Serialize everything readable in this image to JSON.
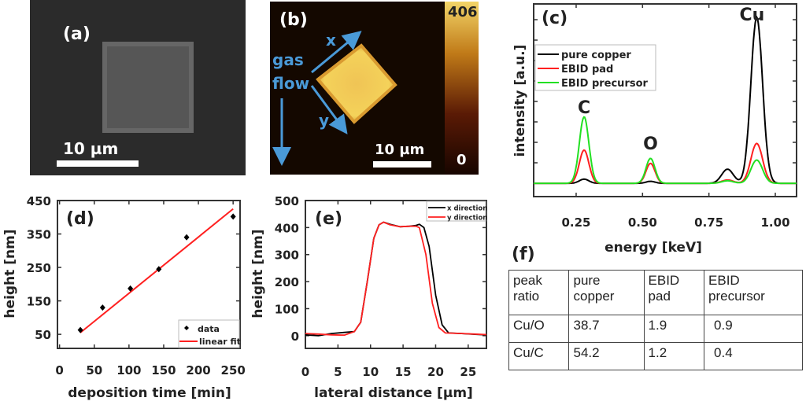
{
  "panels": {
    "a": {
      "label": "(a)",
      "scale_bar": "10 µm",
      "colors": {
        "background": "#2b2b2b",
        "structure": "#5a5a5a"
      }
    },
    "b": {
      "label": "(b)",
      "scale_bar": "10 µm",
      "gas_flow_label_1": "gas",
      "gas_flow_label_2": "flow",
      "axis_x": "x",
      "axis_y": "y",
      "colorbar_max": "406",
      "colorbar_min": "0",
      "colors": {
        "arrows": "#4a9ad8",
        "background": "#140800",
        "structure": "#e9b845"
      }
    },
    "c": {
      "label": "(c)"
    },
    "d": {
      "label": "(d)"
    },
    "e": {
      "label": "(e)"
    },
    "f": {
      "label": "(f)"
    }
  },
  "chart_data": [
    {
      "id": "c",
      "type": "line",
      "xlabel": "energy [keV]",
      "ylabel": "intensity [a.u.]",
      "xlim": [
        0.09,
        1.08
      ],
      "ylim": [
        -8,
        108
      ],
      "xticks": [
        "0.25",
        "0.50",
        "0.75",
        "1.00"
      ],
      "xtick_values": [
        0.25,
        0.5,
        0.75,
        1.0
      ],
      "y_tick_labels_shown": false,
      "legend": "top-left",
      "peak_labels": [
        {
          "text": "C",
          "energy": 0.28
        },
        {
          "text": "O",
          "energy": 0.53
        },
        {
          "text": "Cu",
          "energy": 0.93
        }
      ],
      "series": [
        {
          "name": "pure copper",
          "color": "#000000",
          "peaks": [
            {
              "energy": 0.28,
              "intensity": 2.5
            },
            {
              "energy": 0.53,
              "intensity": 1.2
            },
            {
              "energy": 0.82,
              "intensity": 8.5
            },
            {
              "energy": 0.93,
              "intensity": 100
            }
          ]
        },
        {
          "name": "EBID pad",
          "color": "#ff2020",
          "peaks": [
            {
              "energy": 0.28,
              "intensity": 20
            },
            {
              "energy": 0.53,
              "intensity": 12
            },
            {
              "energy": 0.82,
              "intensity": 2
            },
            {
              "energy": 0.93,
              "intensity": 24
            }
          ]
        },
        {
          "name": "EBID precursor",
          "color": "#22e022",
          "peaks": [
            {
              "energy": 0.28,
              "intensity": 40
            },
            {
              "energy": 0.53,
              "intensity": 15
            },
            {
              "energy": 0.82,
              "intensity": 1.5
            },
            {
              "energy": 0.93,
              "intensity": 14
            }
          ]
        }
      ]
    },
    {
      "id": "d",
      "type": "scatter",
      "xlabel": "deposition time [min]",
      "ylabel": "height [nm]",
      "xlim": [
        -3,
        260
      ],
      "ylim": [
        8,
        450
      ],
      "xticks": [
        0,
        50,
        100,
        150,
        200,
        250
      ],
      "yticks": [
        50,
        150,
        250,
        350,
        450
      ],
      "legend": "bottom-right",
      "series": [
        {
          "name": "data",
          "color": "#000000",
          "x": [
            30,
            62,
            102,
            143,
            183,
            250
          ],
          "y": [
            63,
            130,
            187,
            245,
            340,
            402
          ]
        },
        {
          "name": "linear fit",
          "color": "#ff2020",
          "x": [
            30,
            250
          ],
          "y": [
            55,
            425
          ]
        }
      ]
    },
    {
      "id": "e",
      "type": "line",
      "xlabel": "lateral distance [µm]",
      "ylabel": "height [nm]",
      "xlim": [
        0,
        27.8
      ],
      "ylim": [
        -47,
        500
      ],
      "xticks": [
        0,
        5,
        10,
        15,
        20,
        25
      ],
      "yticks": [
        0,
        100,
        200,
        300,
        400,
        500
      ],
      "legend": "top-right",
      "series": [
        {
          "name": "x direction",
          "color": "#000000",
          "x": [
            0,
            2,
            4,
            6,
            7.5,
            8.5,
            9.5,
            10.5,
            11.3,
            12,
            13,
            14.5,
            16,
            17,
            17.5,
            18.2,
            19,
            20,
            21,
            22,
            24,
            26,
            27.8
          ],
          "y": [
            3,
            0,
            8,
            12,
            15,
            50,
            200,
            360,
            410,
            420,
            412,
            403,
            405,
            408,
            412,
            400,
            330,
            150,
            40,
            10,
            8,
            5,
            3
          ]
        },
        {
          "name": "y direction",
          "color": "#ff2020",
          "x": [
            0,
            2,
            4,
            6,
            7.5,
            8.5,
            9.5,
            10.5,
            11.3,
            12,
            13,
            14.5,
            16,
            17,
            17.5,
            18.5,
            19.5,
            20.5,
            21.5,
            24,
            26,
            27.8
          ],
          "y": [
            8,
            6,
            3,
            2,
            15,
            50,
            200,
            360,
            410,
            420,
            410,
            403,
            405,
            405,
            400,
            300,
            120,
            30,
            10,
            8,
            6,
            4
          ]
        }
      ]
    }
  ],
  "table": {
    "header": [
      "peak\nratio",
      "pure\ncopper",
      "EBID\npad",
      "EBID\nprecursor"
    ],
    "header_lines": [
      [
        "peak",
        "ratio"
      ],
      [
        "pure",
        "copper"
      ],
      [
        "EBID",
        "pad"
      ],
      [
        "EBID",
        "precursor"
      ]
    ],
    "rows": [
      [
        "Cu/O",
        "38.7",
        "1.9",
        "0.9"
      ],
      [
        "Cu/C",
        "54.2",
        "1.2",
        "0.4"
      ]
    ]
  }
}
